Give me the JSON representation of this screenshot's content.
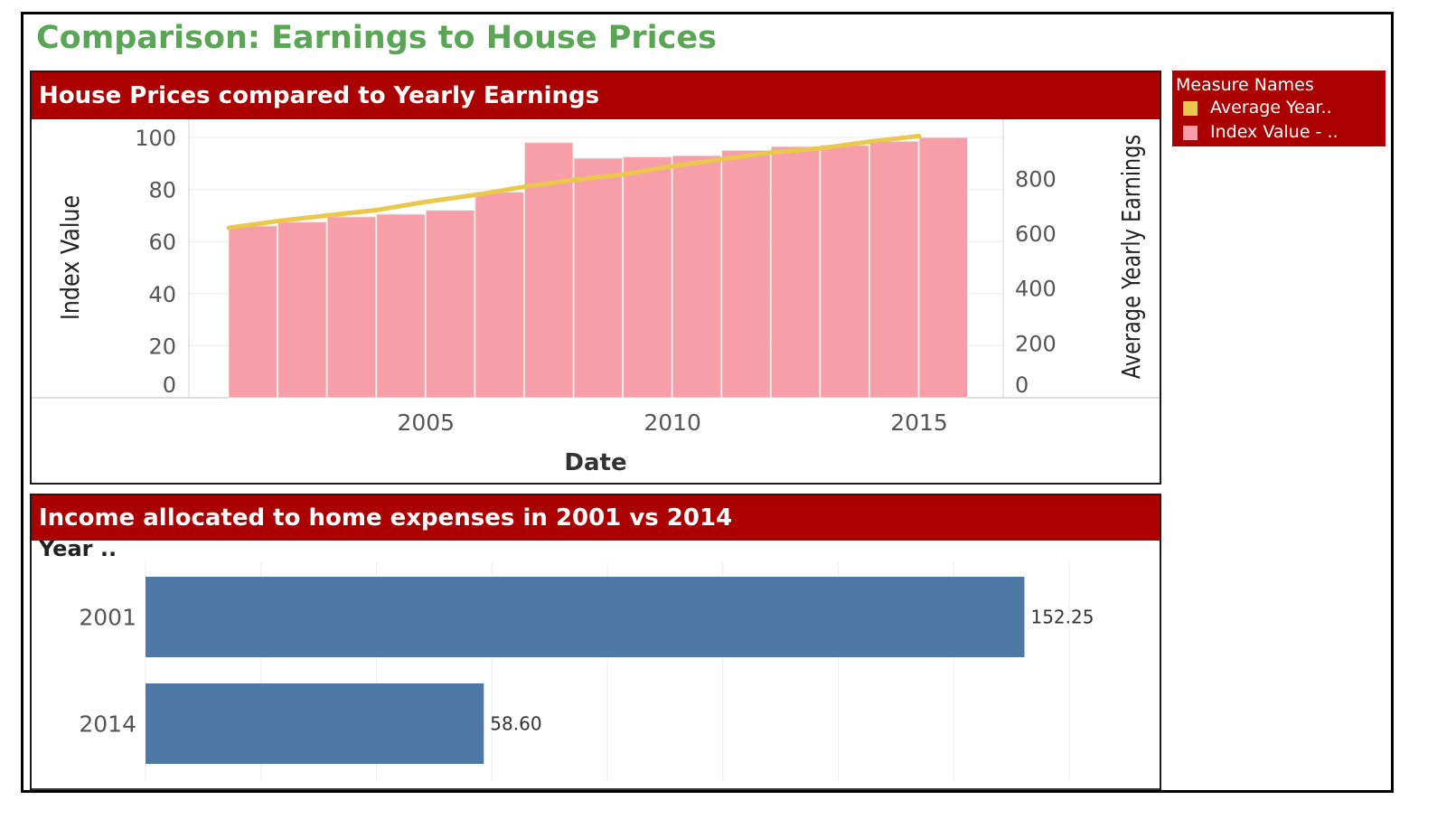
{
  "dashboard": {
    "title": "Comparison: Earnings to House Prices"
  },
  "legend": {
    "title": "Measure Names",
    "items": [
      {
        "label": "Average Year..",
        "color": "#e9c84b"
      },
      {
        "label": "Index Value - ..",
        "color": "#f79ea8"
      }
    ]
  },
  "chart_data": [
    {
      "type": "bar",
      "title": "House Prices compared to Yearly Earnings",
      "xlabel": "Date",
      "ylabel": "Index Value",
      "y2label": "Average Yearly Earnings",
      "x": [
        2001,
        2002,
        2003,
        2004,
        2005,
        2006,
        2007,
        2008,
        2009,
        2010,
        2011,
        2012,
        2013,
        2014,
        2015
      ],
      "x_ticks": [
        "2005",
        "2010",
        "2015"
      ],
      "y_ticks": [
        "0",
        "20",
        "40",
        "60",
        "80",
        "100"
      ],
      "y2_ticks": [
        "0",
        "200",
        "400",
        "600",
        "800"
      ],
      "ylim": [
        0,
        100
      ],
      "y2lim": [
        0,
        950
      ],
      "series": [
        {
          "name": "Index Value - ..",
          "axis": "left",
          "mark": "bar",
          "color": "#f79ea8",
          "values": [
            66,
            67.5,
            69.5,
            70.5,
            72,
            79,
            98,
            92,
            92.5,
            93,
            95,
            96.5,
            97,
            98.5,
            100
          ]
        },
        {
          "name": "Average Year..",
          "axis": "right",
          "mark": "line",
          "color": "#e9c84b",
          "values": [
            620,
            645,
            665,
            685,
            715,
            740,
            770,
            795,
            815,
            845,
            870,
            895,
            910,
            935,
            955
          ]
        }
      ],
      "grid": true,
      "legend_position": "right"
    },
    {
      "type": "bar",
      "orientation": "horizontal",
      "title": "Income allocated to home expenses in 2001 vs 2014",
      "ylabel": "Year ..",
      "categories": [
        "2001",
        "2014"
      ],
      "values": [
        152.25,
        58.6
      ],
      "value_labels": [
        "152.25",
        "58.60"
      ],
      "xlim": [
        0,
        160
      ],
      "color": "#4e79a7",
      "grid": true
    }
  ]
}
